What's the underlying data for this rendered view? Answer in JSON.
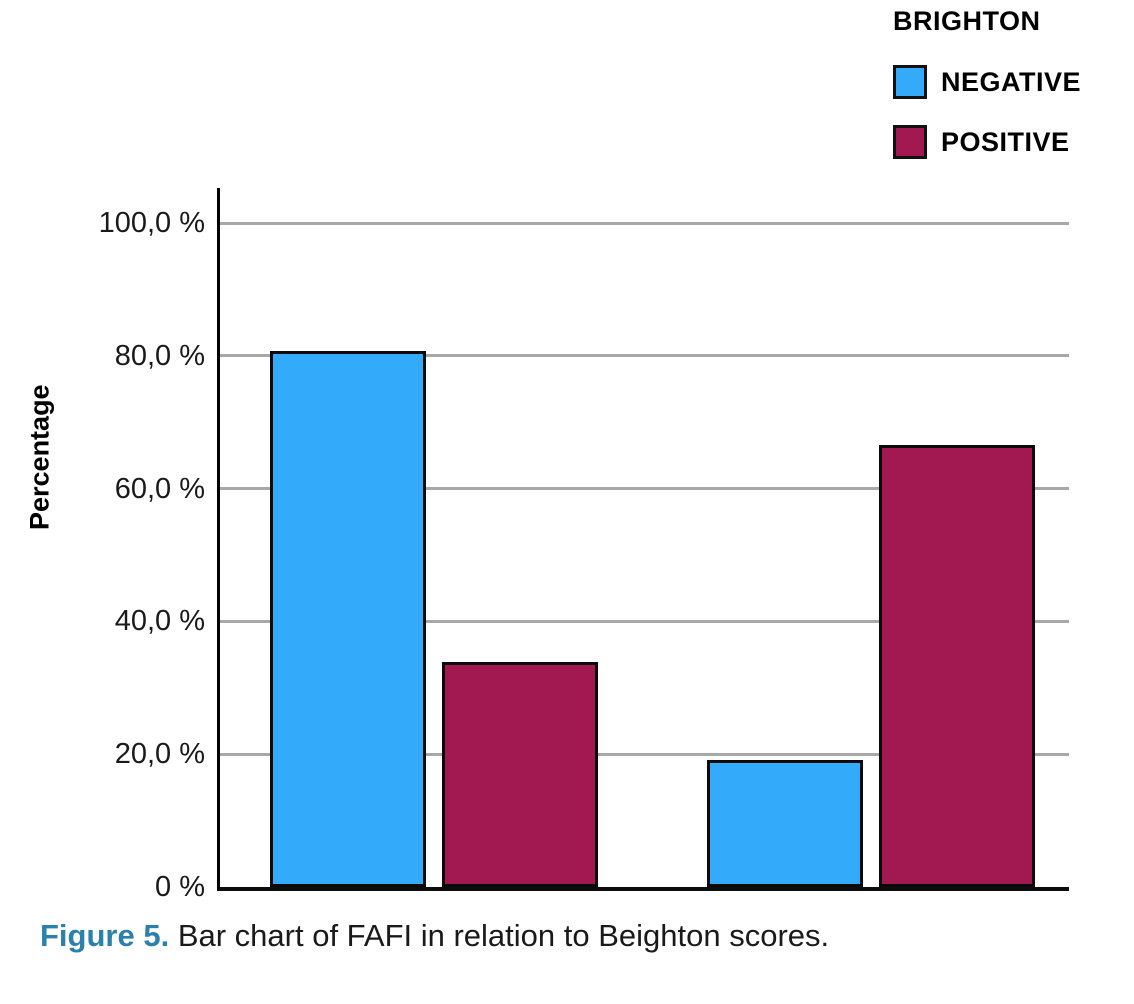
{
  "chart_data": {
    "type": "bar",
    "title": "",
    "xlabel": "",
    "ylabel": "Percentage",
    "ylim": [
      0,
      105
    ],
    "grid": true,
    "legend_position": "top-right",
    "legend": {
      "title": "BRIGHTON",
      "entries": [
        {
          "label": "NEGATIVE",
          "color": "#33abfa"
        },
        {
          "label": "POSITIVE",
          "color": "#a21850"
        }
      ]
    },
    "yticks": [
      {
        "value": 0,
        "label": "0 %"
      },
      {
        "value": 20,
        "label": "20,0 %"
      },
      {
        "value": 40,
        "label": "40,0 %"
      },
      {
        "value": 60,
        "label": "60,0 %"
      },
      {
        "value": 80,
        "label": "80,0 %"
      },
      {
        "value": 100,
        "label": "100,0 %"
      }
    ],
    "gridline_values": [
      20,
      40,
      60,
      80,
      100
    ],
    "bars": [
      {
        "group": 1,
        "series": "NEGATIVE",
        "value": 80.7,
        "color": "#33abfa"
      },
      {
        "group": 1,
        "series": "POSITIVE",
        "value": 33.9,
        "color": "#a21850"
      },
      {
        "group": 2,
        "series": "NEGATIVE",
        "value": 19.2,
        "color": "#33abfa"
      },
      {
        "group": 2,
        "series": "POSITIVE",
        "value": 66.5,
        "color": "#a21850"
      }
    ]
  },
  "colors": {
    "negative_fill": "#33abfa",
    "positive_fill": "#a21850",
    "bar_border": "#0a0a0a",
    "gridline": "#a8a8a8",
    "axis": "#000000",
    "caption_accent": "#2b80ad",
    "text": "#1a1a1a"
  },
  "caption": {
    "prefix": "Figure 5.",
    "text": " Bar chart of FAFI in relation to Beighton scores."
  }
}
